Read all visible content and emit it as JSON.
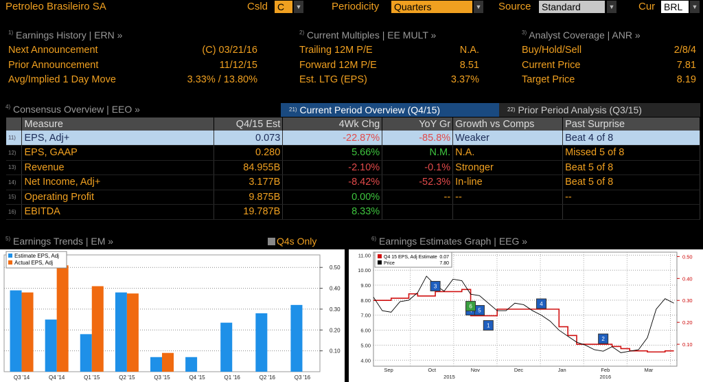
{
  "header": {
    "company": "Petroleo Brasileiro SA",
    "csld_label": "Csld",
    "csld_value": "C",
    "periodicity_label": "Periodicity",
    "periodicity_value": "Quarters",
    "source_label": "Source",
    "source_value": "Standard",
    "cur_label": "Cur",
    "cur_value": "BRL"
  },
  "earnings_history": {
    "num": "1)",
    "title": "Earnings History | ERN »",
    "rows": [
      {
        "label": "Next Announcement",
        "value": "(C)  03/21/16"
      },
      {
        "label": "Prior Announcement",
        "value": "11/12/15"
      },
      {
        "label": "Avg/Implied 1 Day Move",
        "value": "3.33% / 13.80%"
      }
    ]
  },
  "current_multiples": {
    "num": "2)",
    "title": "Current Multiples | EE MULT »",
    "rows": [
      {
        "label": "Trailing 12M P/E",
        "value": "N.A."
      },
      {
        "label": "Forward 12M P/E",
        "value": "8.51"
      },
      {
        "label": "Est. LTG (EPS)",
        "value": "3.37%"
      }
    ]
  },
  "analyst_coverage": {
    "num": "3)",
    "title": "Analyst Coverage | ANR »",
    "rows": [
      {
        "label": "Buy/Hold/Sell",
        "value": "2/8/4"
      },
      {
        "label": "Current Price",
        "value": "7.81"
      },
      {
        "label": "Target Price",
        "value": "8.19"
      }
    ]
  },
  "consensus": {
    "num": "4)",
    "title": "Consensus Overview | EEO »",
    "tab_current_num": "21)",
    "tab_current": "Current Period Overview (Q4/15)",
    "tab_prior_num": "22)",
    "tab_prior": "Prior Period Analysis (Q3/15)",
    "columns": [
      "Measure",
      "Q4/15 Est",
      "4Wk Chg",
      "YoY Gr",
      "Growth vs Comps",
      "Past Surprise"
    ],
    "rows": [
      {
        "num": "11)",
        "measure": "EPS, Adj+",
        "est": "0.073",
        "chg": "-22.87%",
        "yoy": "-85.8%",
        "growth": "Weaker",
        "surprise": "Beat 4 of 8"
      },
      {
        "num": "12)",
        "measure": "EPS, GAAP",
        "est": "0.280",
        "chg": "5.66%",
        "yoy": "N.M.",
        "growth": "N.A.",
        "surprise": "Missed 5 of 8"
      },
      {
        "num": "13)",
        "measure": "Revenue",
        "est": "84.955B",
        "chg": "-2.10%",
        "yoy": "-0.1%",
        "growth": "Stronger",
        "surprise": "Beat 5 of 8"
      },
      {
        "num": "14)",
        "measure": "Net Income, Adj+",
        "est": "3.177B",
        "chg": "-8.42%",
        "yoy": "-52.3%",
        "growth": "In-line",
        "surprise": "Beat 5 of 8"
      },
      {
        "num": "15)",
        "measure": "Operating Profit",
        "est": "9.875B",
        "chg": "0.00%",
        "yoy": "--",
        "growth": "--",
        "surprise": "--"
      },
      {
        "num": "16)",
        "measure": "EBITDA",
        "est": "19.787B",
        "chg": "8.33%",
        "yoy": "",
        "growth": "",
        "surprise": ""
      }
    ]
  },
  "trends": {
    "num": "5)",
    "title": "Earnings Trends | EM »",
    "toggle": "Q4s Only"
  },
  "graph": {
    "num": "6)",
    "title": "Earnings Estimates Graph | EEG »"
  },
  "colors": {
    "accent": "#f0a020",
    "estimate_bar": "#1e90e8",
    "actual_bar": "#f06a10",
    "estimate_line": "#d01010",
    "price_line": "#000000",
    "negative": "#e24a4a",
    "positive": "#3ec43e"
  },
  "chart_data": [
    {
      "type": "bar",
      "categories": [
        "Q3 '14",
        "Q4 '14",
        "Q1 '15",
        "Q2 '15",
        "Q3 '15",
        "Q4 '15",
        "Q1 '16",
        "Q2 '16",
        "Q3 '16"
      ],
      "series": [
        {
          "name": "Estimate EPS, Adj",
          "values": [
            0.39,
            0.25,
            0.18,
            0.38,
            0.07,
            0.07,
            0.235,
            0.28,
            0.32
          ]
        },
        {
          "name": "Actual EPS, Adj",
          "values": [
            0.38,
            0.51,
            0.41,
            0.375,
            0.09,
            null,
            null,
            null,
            null
          ]
        }
      ],
      "ylim": [
        0,
        0.56
      ],
      "yticks": [
        "0.10",
        "0.20",
        "0.30",
        "0.40",
        "0.50"
      ],
      "legend": "top-left",
      "grid": true
    },
    {
      "type": "line",
      "x_labels": [
        "Sep",
        "Oct",
        "Nov",
        "Dec",
        "Jan",
        "Feb",
        "Mar"
      ],
      "x_year_labels": [
        "2015",
        "2016"
      ],
      "series": [
        {
          "name": "Q4 15 EPS, Adj Estimate",
          "last": "0.07",
          "axis": "right",
          "values": [
            0.3,
            0.3,
            0.31,
            0.31,
            0.33,
            0.32,
            0.32,
            0.34,
            0.34,
            0.34,
            0.35,
            0.23,
            0.23,
            0.23,
            0.26,
            0.26,
            0.26,
            0.26,
            0.26,
            0.26,
            0.26,
            0.18,
            0.14,
            0.1,
            0.1,
            0.1,
            0.1,
            0.09,
            0.08,
            0.07,
            0.07,
            0.065,
            0.065,
            0.07,
            0.07
          ]
        },
        {
          "name": "Price",
          "last": "7.80",
          "axis": "left",
          "values": [
            8.2,
            7.3,
            7.2,
            7.9,
            8.0,
            8.5,
            9.6,
            9.0,
            8.6,
            9.4,
            9.3,
            8.4,
            8.3,
            7.8,
            7.3,
            7.3,
            7.8,
            7.7,
            7.3,
            7.0,
            6.6,
            6.0,
            5.6,
            5.2,
            5.0,
            4.7,
            4.6,
            4.9,
            4.5,
            4.6,
            4.7,
            5.5,
            7.4,
            8.1,
            7.8
          ]
        }
      ],
      "ylim_left": [
        3.6,
        11.2
      ],
      "yticks_left": [
        "4.00",
        "5.00",
        "6.00",
        "7.00",
        "8.00",
        "9.00",
        "10.00",
        "11.00"
      ],
      "ylim_right": [
        0,
        0.52
      ],
      "yticks_right": [
        "0.10",
        "0.20",
        "0.30",
        "0.40",
        "0.50"
      ],
      "markers": [
        {
          "label": "3",
          "index": 7,
          "color": "#1f5fbf"
        },
        {
          "label": "4",
          "index": 11,
          "color": "#1f5fbf"
        },
        {
          "label": "5",
          "index": 12,
          "color": "#1f5fbf"
        },
        {
          "label": "6",
          "index": 11,
          "color": "#3aa040"
        },
        {
          "label": "1",
          "index": 13,
          "color": "#1f5fbf"
        },
        {
          "label": "4",
          "index": 19,
          "color": "#1f5fbf"
        },
        {
          "label": "2",
          "index": 26,
          "color": "#1f5fbf"
        }
      ],
      "legend": "top-left",
      "grid": true
    }
  ]
}
